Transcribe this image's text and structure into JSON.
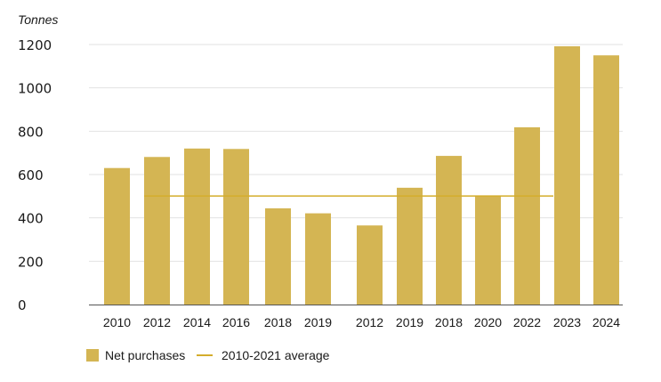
{
  "colors": {
    "bar": "#d4b553",
    "average_line": "#d4ad2c",
    "grid": "#e2e2e2",
    "axis": "#555555"
  },
  "chart_data": {
    "type": "bar",
    "ylabel": "Tonnes",
    "ylim": [
      0,
      1200
    ],
    "y_ticks": [
      0,
      200,
      400,
      600,
      800,
      1000,
      1200
    ],
    "grid": "horizontal",
    "legend_position": "bottom-left",
    "categories": [
      "2010",
      "2012",
      "2014",
      "2016",
      "2018",
      "2019",
      "2012",
      "2019",
      "2018",
      "2020",
      "2022",
      "2023",
      "2024"
    ],
    "series": [
      {
        "name": "Net purchases",
        "values": [
          630,
          681,
          720,
          718,
          444,
          421,
          365,
          539,
          686,
          502,
          818,
          1192,
          1150
        ]
      }
    ],
    "average": {
      "name": "2010-2021 average",
      "value": 501
    }
  }
}
